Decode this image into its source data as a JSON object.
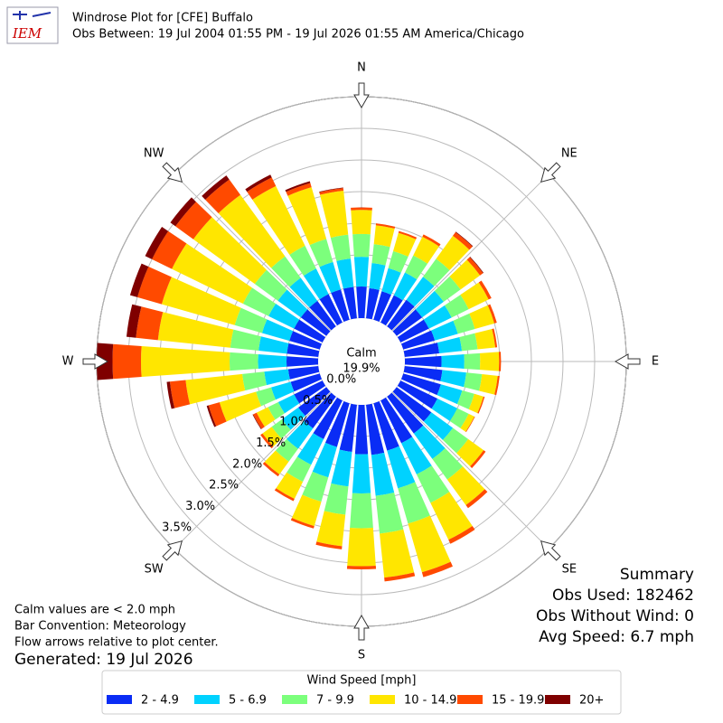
{
  "logo": "IEM",
  "chart_data": {
    "type": "windrose",
    "title": "Windrose Plot for [CFE] Buffalo",
    "subtitle": "Obs Between: 19 Jul 2004 01:55 PM - 19 Jul 2026 01:55 AM America/Chicago",
    "calm_label": "Calm",
    "calm_value": "19.9%",
    "x": [
      0,
      10,
      20,
      30,
      40,
      50,
      60,
      70,
      80,
      90,
      100,
      110,
      120,
      130,
      140,
      150,
      160,
      170,
      180,
      190,
      200,
      210,
      220,
      230,
      240,
      250,
      260,
      270,
      280,
      290,
      300,
      310,
      320,
      330,
      340,
      350
    ],
    "xlim": [
      0,
      360
    ],
    "xticks": [
      {
        "value": 0,
        "label": "N"
      },
      {
        "value": 45,
        "label": "NE"
      },
      {
        "value": 90,
        "label": "E"
      },
      {
        "value": 135,
        "label": "SE"
      },
      {
        "value": 180,
        "label": "S"
      },
      {
        "value": 225,
        "label": "SW"
      },
      {
        "value": 270,
        "label": "W"
      },
      {
        "value": 315,
        "label": "NW"
      }
    ],
    "ylim": [
      0,
      3.5
    ],
    "yticks": [
      {
        "value": 0,
        "label": "0.0%"
      },
      {
        "value": 0.5,
        "label": "0.5%"
      },
      {
        "value": 1,
        "label": "1.0%"
      },
      {
        "value": 1.5,
        "label": "1.5%"
      },
      {
        "value": 2,
        "label": "2.0%"
      },
      {
        "value": 2.5,
        "label": "2.5%"
      },
      {
        "value": 3,
        "label": "3.0%"
      },
      {
        "value": 3.5,
        "label": "3.5%"
      }
    ],
    "grid": true,
    "legend_title": "Wind Speed [mph]",
    "series": [
      {
        "name": "2 - 4.9",
        "color": "#0a2cf5",
        "values": [
          0.5,
          0.48,
          0.47,
          0.48,
          0.52,
          0.5,
          0.5,
          0.52,
          0.55,
          0.58,
          0.6,
          0.62,
          0.65,
          0.68,
          0.72,
          0.75,
          0.78,
          0.8,
          0.78,
          0.75,
          0.72,
          0.68,
          0.62,
          0.55,
          0.5,
          0.48,
          0.48,
          0.5,
          0.5,
          0.5,
          0.5,
          0.5,
          0.5,
          0.5,
          0.5,
          0.5
        ]
      },
      {
        "name": "5 - 6.9",
        "color": "#00d2ff",
        "values": [
          0.47,
          0.4,
          0.38,
          0.4,
          0.45,
          0.42,
          0.4,
          0.38,
          0.36,
          0.36,
          0.38,
          0.35,
          0.35,
          0.42,
          0.5,
          0.55,
          0.62,
          0.65,
          0.62,
          0.55,
          0.5,
          0.45,
          0.4,
          0.32,
          0.28,
          0.32,
          0.38,
          0.45,
          0.45,
          0.45,
          0.45,
          0.45,
          0.45,
          0.45,
          0.45,
          0.45
        ]
      },
      {
        "name": "7 - 9.9",
        "color": "#7cff7c",
        "values": [
          0.36,
          0.3,
          0.28,
          0.3,
          0.35,
          0.33,
          0.3,
          0.28,
          0.25,
          0.25,
          0.25,
          0.2,
          0.2,
          0.3,
          0.4,
          0.5,
          0.58,
          0.6,
          0.55,
          0.45,
          0.4,
          0.3,
          0.25,
          0.2,
          0.18,
          0.25,
          0.35,
          0.45,
          0.45,
          0.45,
          0.45,
          0.45,
          0.42,
          0.4,
          0.38,
          0.38
        ]
      },
      {
        "name": "10 - 14.9",
        "color": "#ffe600",
        "values": [
          0.38,
          0.3,
          0.3,
          0.33,
          0.45,
          0.38,
          0.35,
          0.32,
          0.28,
          0.3,
          0.25,
          0.15,
          0.1,
          0.3,
          0.5,
          0.65,
          0.8,
          0.7,
          0.6,
          0.5,
          0.4,
          0.3,
          0.25,
          0.18,
          0.2,
          0.6,
          0.9,
          1.4,
          1.15,
          1.2,
          1.25,
          1.2,
          1.2,
          1.05,
          0.85,
          0.7
        ]
      },
      {
        "name": "15 - 19.9",
        "color": "#ff4a00",
        "values": [
          0.04,
          0.03,
          0.03,
          0.04,
          0.07,
          0.06,
          0.05,
          0.04,
          0.03,
          0.03,
          0.03,
          0.02,
          0.01,
          0.04,
          0.06,
          0.07,
          0.08,
          0.06,
          0.05,
          0.05,
          0.04,
          0.04,
          0.04,
          0.04,
          0.06,
          0.18,
          0.25,
          0.45,
          0.35,
          0.4,
          0.35,
          0.35,
          0.3,
          0.15,
          0.07,
          0.04
        ]
      },
      {
        "name": "20+",
        "color": "#7f0000",
        "values": [
          0.0,
          0.0,
          0.0,
          0.0,
          0.01,
          0.01,
          0.0,
          0.0,
          0.0,
          0.0,
          0.0,
          0.0,
          0.0,
          0.0,
          0.0,
          0.0,
          0.0,
          0.0,
          0.0,
          0.0,
          0.0,
          0.0,
          0.0,
          0.0,
          0.01,
          0.03,
          0.05,
          0.25,
          0.15,
          0.12,
          0.12,
          0.1,
          0.08,
          0.05,
          0.03,
          0.01
        ]
      }
    ]
  },
  "notes": [
    "Calm values are < 2.0 mph",
    "Bar Convention: Meteorology",
    "Flow arrows relative to plot center."
  ],
  "generated": "Generated: 19 Jul 2026",
  "summary": {
    "title": "Summary",
    "lines": [
      "Obs Used: 182462",
      "Obs Without Wind: 0",
      "Avg Speed: 6.7 mph"
    ]
  }
}
